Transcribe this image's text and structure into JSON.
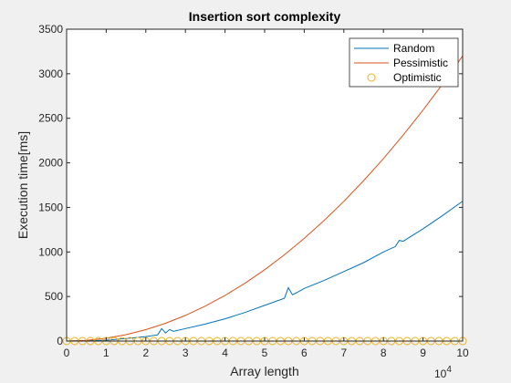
{
  "chart_data": {
    "type": "line",
    "title": "Insertion sort complexity",
    "xlabel": "Array length",
    "ylabel": "Execution time[ms]",
    "x_exponent_label": "10",
    "x_exponent_power": "4",
    "xlim": [
      0,
      10
    ],
    "ylim": [
      0,
      3500
    ],
    "x_ticks": [
      0,
      1,
      2,
      3,
      4,
      5,
      6,
      7,
      8,
      9,
      10
    ],
    "x_tick_labels": [
      "0",
      "1",
      "2",
      "3",
      "4",
      "5",
      "6",
      "7",
      "8",
      "9",
      "10"
    ],
    "y_ticks": [
      0,
      500,
      1000,
      1500,
      2000,
      2500,
      3000,
      3500
    ],
    "y_tick_labels": [
      "0",
      "500",
      "1000",
      "1500",
      "2000",
      "2500",
      "3000",
      "3500"
    ],
    "grid": false,
    "legend_position": "top-right",
    "series": [
      {
        "name": "Random",
        "color": "#0072bd",
        "style": "line",
        "x": [
          0,
          0.5,
          1,
          1.5,
          2,
          2.3,
          2.4,
          2.5,
          2.6,
          2.7,
          3,
          3.5,
          4,
          4.5,
          5,
          5.5,
          5.6,
          5.7,
          5.8,
          6,
          6.5,
          7,
          7.5,
          8,
          8.3,
          8.4,
          8.5,
          9,
          9.5,
          10
        ],
        "y": [
          0,
          2,
          10,
          28,
          50,
          70,
          140,
          90,
          130,
          110,
          140,
          190,
          250,
          320,
          400,
          480,
          600,
          520,
          540,
          590,
          680,
          780,
          880,
          1000,
          1060,
          1130,
          1120,
          1260,
          1410,
          1570
        ]
      },
      {
        "name": "Pessimistic",
        "color": "#d95319",
        "style": "line",
        "x": [
          0,
          0.5,
          1,
          1.5,
          2,
          2.5,
          3,
          3.5,
          4,
          4.5,
          5,
          5.5,
          6,
          6.5,
          7,
          7.5,
          8,
          8.5,
          9,
          9.5,
          10
        ],
        "y": [
          0,
          8,
          32,
          72,
          128,
          200,
          288,
          392,
          512,
          648,
          800,
          968,
          1152,
          1352,
          1568,
          1800,
          2048,
          2312,
          2592,
          2888,
          3200
        ]
      },
      {
        "name": "Optimistic",
        "color": "#edb120",
        "style": "markers",
        "x": [
          0,
          0.2,
          0.4,
          0.6,
          0.8,
          1,
          1.2,
          1.4,
          1.6,
          1.8,
          2,
          2.2,
          2.4,
          2.6,
          2.8,
          3,
          3.2,
          3.4,
          3.6,
          3.8,
          4,
          4.2,
          4.4,
          4.6,
          4.8,
          5,
          5.2,
          5.4,
          5.6,
          5.8,
          6,
          6.2,
          6.4,
          6.6,
          6.8,
          7,
          7.2,
          7.4,
          7.6,
          7.8,
          8,
          8.2,
          8.4,
          8.6,
          8.8,
          9,
          9.2,
          9.4,
          9.6,
          9.8,
          10
        ],
        "y": [
          0,
          0,
          0,
          0,
          0,
          0,
          0,
          0,
          0,
          0,
          0,
          0,
          0,
          0,
          0,
          0,
          0,
          0,
          0,
          0,
          0,
          0,
          0,
          0,
          0,
          0,
          0,
          0,
          0,
          0,
          0,
          0,
          0,
          0,
          0,
          0,
          0,
          0,
          0,
          0,
          0,
          0,
          0,
          0,
          0,
          0,
          0,
          0,
          0,
          0,
          0
        ]
      }
    ]
  }
}
